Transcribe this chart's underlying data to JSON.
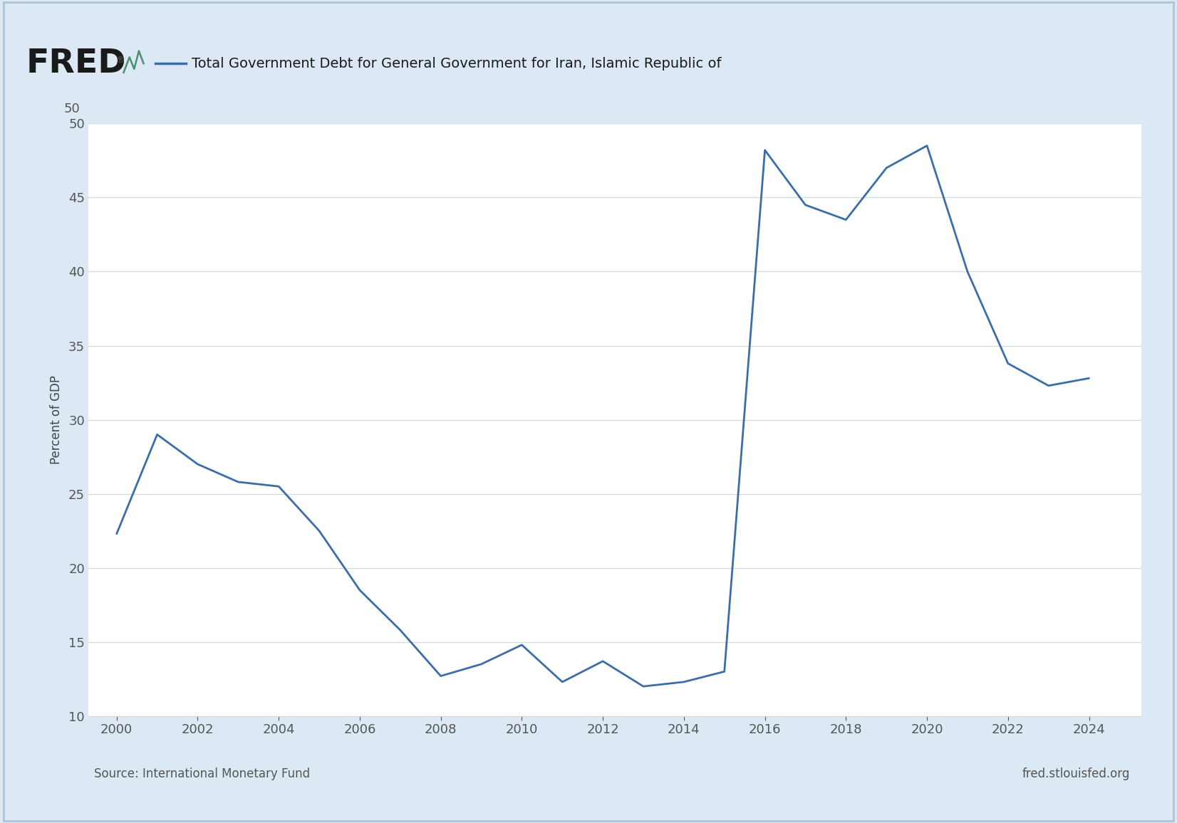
{
  "title": "Total Government Debt for General Government for Iran, Islamic Republic of",
  "ylabel": "Percent of GDP",
  "source_left": "Source: International Monetary Fund",
  "source_right": "fred.stlouisfed.org",
  "line_color": "#3b6ea8",
  "outer_bg_color": "#dce9f5",
  "plot_bg_color": "#ffffff",
  "years": [
    2000,
    2001,
    2002,
    2003,
    2004,
    2005,
    2006,
    2007,
    2008,
    2009,
    2010,
    2011,
    2012,
    2013,
    2014,
    2015,
    2016,
    2017,
    2018,
    2019,
    2020,
    2021,
    2022,
    2023,
    2024
  ],
  "values": [
    22.3,
    29.0,
    27.0,
    25.8,
    25.5,
    22.5,
    18.5,
    15.8,
    12.7,
    13.5,
    14.8,
    12.3,
    13.7,
    12.0,
    12.3,
    13.0,
    48.2,
    44.5,
    43.5,
    47.0,
    48.5,
    40.0,
    33.8,
    32.3,
    32.8
  ],
  "xlim_left": 1999.3,
  "xlim_right": 2025.3,
  "ylim_bottom": 10,
  "ylim_top": 50,
  "yticks": [
    10,
    15,
    20,
    25,
    30,
    35,
    40,
    45,
    50
  ],
  "xticks": [
    2000,
    2002,
    2004,
    2006,
    2008,
    2010,
    2012,
    2014,
    2016,
    2018,
    2020,
    2022,
    2024
  ],
  "title_fontsize": 14,
  "axis_label_fontsize": 12,
  "tick_fontsize": 13,
  "source_fontsize": 12,
  "line_width": 2.0,
  "fred_fontsize": 34,
  "grid_color": "#d0d8e0",
  "tick_color": "#555555",
  "border_color": "#b0c4d8"
}
